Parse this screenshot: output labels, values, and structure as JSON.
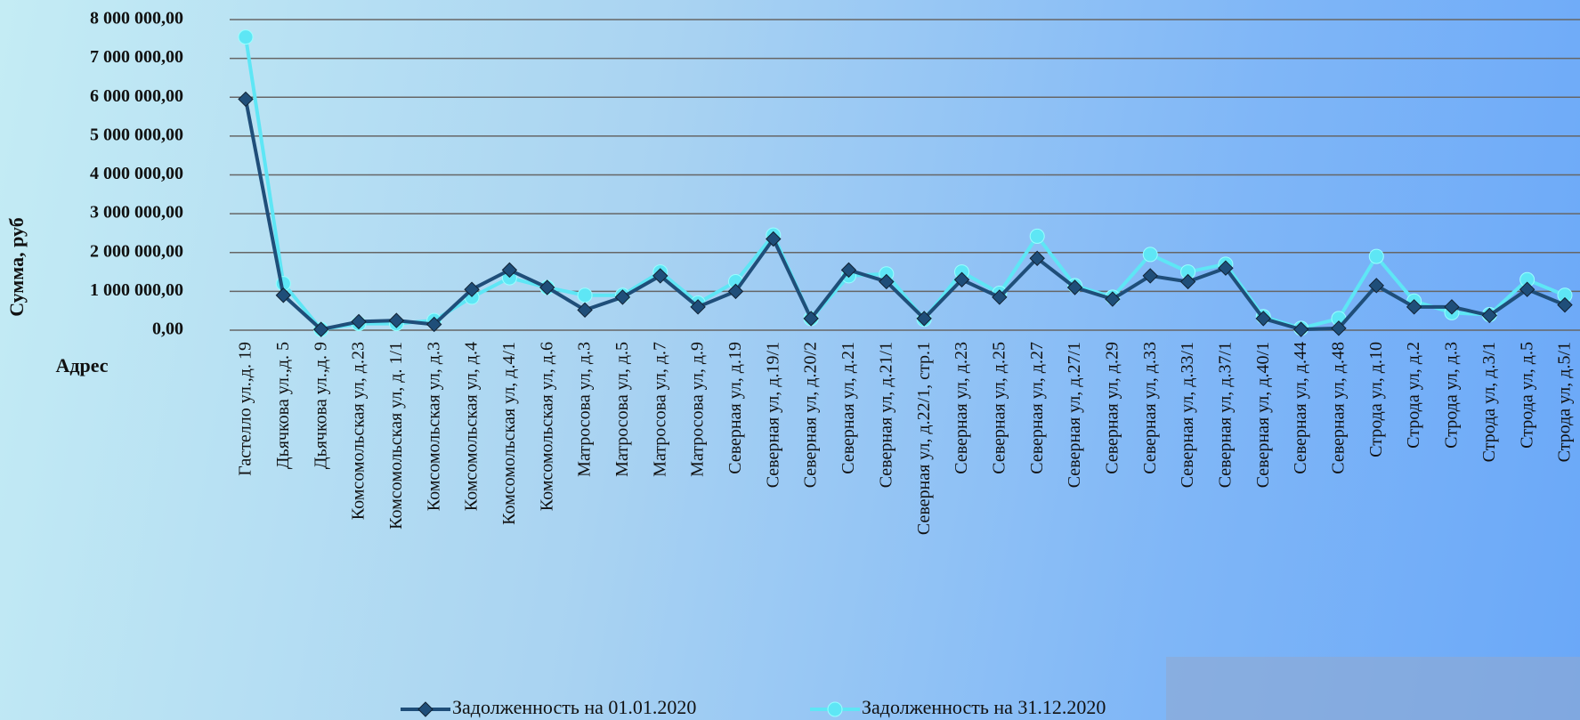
{
  "chart_data": {
    "type": "line",
    "y_label": "Сумма, руб",
    "x_label": "Адрес",
    "categories": [
      "Гастелло ул.,д. 19",
      "Дьячкова ул.,д. 5",
      "Дьячкова ул.,д. 9",
      "Комсомольская ул, д.23",
      "Комсомольская ул, д. 1/1",
      "Комсомольская ул, д.3",
      "Комсомольская ул, д.4",
      "Комсомольская ул, д.4/1",
      "Комсомольская ул, д.6",
      "Матросова ул, д.3",
      "Матросова ул, д.5",
      "Матросова ул, д.7",
      "Матросова ул, д.9",
      "Северная ул, д.19",
      "Северная ул, д.19/1",
      "Северная ул, д.20/2",
      "Северная ул, д.21",
      "Северная ул, д.21/1",
      "Северная ул, д.22/1, стр.1",
      "Северная ул, д.23",
      "Северная ул, д.25",
      "Северная ул, д.27",
      "Северная ул, д.27/1",
      "Северная ул, д.29",
      "Северная ул, д.33",
      "Северная ул, д.33/1",
      "Северная ул, д.37/1",
      "Северная ул, д.40/1",
      "Северная ул, д.44",
      "Северная ул, д.48",
      "Строда ул, д.10",
      "Строда ул, д.2",
      "Строда ул, д.3",
      "Строда ул, д.3/1",
      "Строда ул, д.5",
      "Строда ул, д.5/1"
    ],
    "series": [
      {
        "name": "Задолженность на 01.01.2020",
        "color": "#1f4e79",
        "marker": "diamond",
        "values": [
          5950000,
          900000,
          20000,
          220000,
          250000,
          150000,
          1050000,
          1550000,
          1100000,
          520000,
          850000,
          1400000,
          600000,
          1000000,
          2350000,
          300000,
          1550000,
          1250000,
          300000,
          1300000,
          850000,
          1850000,
          1100000,
          800000,
          1400000,
          1250000,
          1600000,
          300000,
          20000,
          50000,
          1150000,
          600000,
          600000,
          380000,
          1050000,
          650000
        ]
      },
      {
        "name": "Задолженность на 31.12.2020",
        "color": "#5ee6f5",
        "marker": "circle",
        "values": [
          7550000,
          1200000,
          20000,
          170000,
          170000,
          250000,
          850000,
          1350000,
          1100000,
          900000,
          900000,
          1500000,
          700000,
          1250000,
          2450000,
          300000,
          1400000,
          1450000,
          280000,
          1500000,
          950000,
          2420000,
          1150000,
          850000,
          1950000,
          1500000,
          1700000,
          350000,
          50000,
          300000,
          1900000,
          750000,
          450000,
          400000,
          1300000,
          900000
        ]
      }
    ],
    "ylim": [
      0,
      8000000
    ],
    "yticks": [
      {
        "value": 0,
        "label": "0,00"
      },
      {
        "value": 1000000,
        "label": "1 000 000,00"
      },
      {
        "value": 2000000,
        "label": "2 000 000,00"
      },
      {
        "value": 3000000,
        "label": "3 000 000,00"
      },
      {
        "value": 4000000,
        "label": "4 000 000,00"
      },
      {
        "value": 5000000,
        "label": "5 000 000,00"
      },
      {
        "value": 6000000,
        "label": "6 000 000,00"
      },
      {
        "value": 7000000,
        "label": "7 000 000,00"
      },
      {
        "value": 8000000,
        "label": "8 000 000,00"
      }
    ],
    "grid": true,
    "legend": "bottom"
  }
}
